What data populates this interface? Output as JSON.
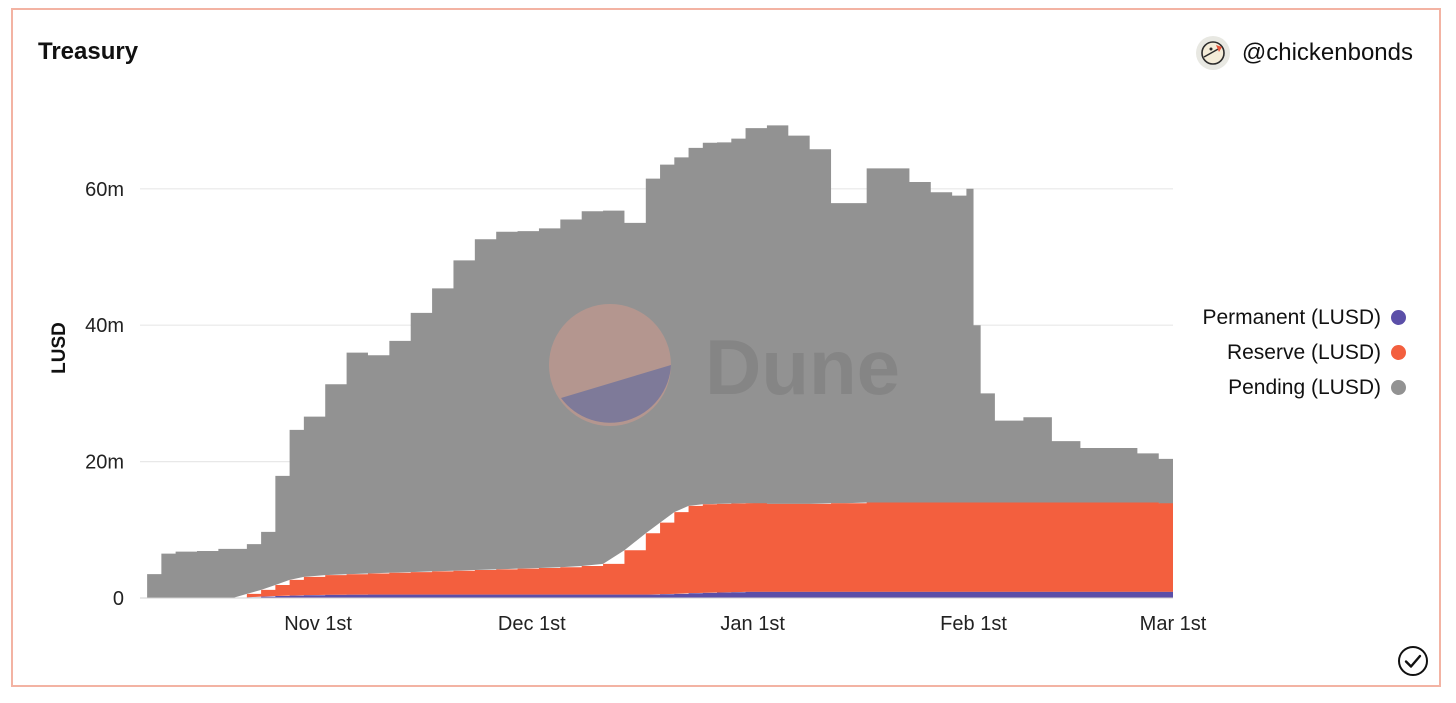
{
  "card": {
    "title": "Treasury",
    "author_handle": "@chickenbonds",
    "author_avatar_icon": "chicken-avatar-icon",
    "watermark": "Dune",
    "status_icon": "check-circle-icon"
  },
  "colors": {
    "permanent": "#5b4fa8",
    "reserve": "#f35f3e",
    "pending": "#929292",
    "grid": "#e8e8e8",
    "border": "#f3b3a3"
  },
  "chart_data": {
    "type": "area",
    "stacked": true,
    "title": "Treasury",
    "ylabel": "LUSD",
    "xlabel": "",
    "ylim": [
      0,
      75000000
    ],
    "y_ticks": [
      0,
      20000000,
      40000000,
      60000000
    ],
    "y_tick_labels": [
      "0",
      "20m",
      "40m",
      "60m"
    ],
    "x_ticks": [
      "2022-11-01",
      "2022-12-01",
      "2023-01-01",
      "2023-02-01",
      "2023-03-01"
    ],
    "x_tick_labels": [
      "Nov 1st",
      "Dec 1st",
      "Jan 1st",
      "Feb 1st",
      "Mar 1st"
    ],
    "x": [
      "2022-10-07",
      "2022-10-08",
      "2022-10-10",
      "2022-10-12",
      "2022-10-15",
      "2022-10-18",
      "2022-10-20",
      "2022-10-22",
      "2022-10-24",
      "2022-10-26",
      "2022-10-28",
      "2022-10-30",
      "2022-11-02",
      "2022-11-05",
      "2022-11-08",
      "2022-11-11",
      "2022-11-14",
      "2022-11-17",
      "2022-11-20",
      "2022-11-23",
      "2022-11-26",
      "2022-11-29",
      "2022-12-02",
      "2022-12-05",
      "2022-12-08",
      "2022-12-11",
      "2022-12-14",
      "2022-12-17",
      "2022-12-19",
      "2022-12-21",
      "2022-12-23",
      "2022-12-25",
      "2022-12-27",
      "2022-12-29",
      "2022-12-31",
      "2023-01-03",
      "2023-01-06",
      "2023-01-09",
      "2023-01-12",
      "2023-01-14",
      "2023-01-17",
      "2023-01-20",
      "2023-01-23",
      "2023-01-26",
      "2023-01-29",
      "2023-01-31",
      "2023-02-01",
      "2023-02-02",
      "2023-02-04",
      "2023-02-08",
      "2023-02-12",
      "2023-02-16",
      "2023-02-20",
      "2023-02-24",
      "2023-02-27",
      "2023-03-01"
    ],
    "series": [
      {
        "name": "Permanent (LUSD)",
        "color": "#5b4fa8",
        "values": [
          0,
          0,
          0,
          0,
          0,
          0,
          0,
          100000,
          200000,
          300000,
          350000,
          400000,
          450000,
          480000,
          500000,
          500000,
          500000,
          500000,
          500000,
          500000,
          500000,
          500000,
          500000,
          500000,
          500000,
          500000,
          500000,
          500000,
          550000,
          600000,
          700000,
          750000,
          800000,
          850000,
          900000,
          900000,
          900000,
          900000,
          900000,
          900000,
          900000,
          900000,
          900000,
          900000,
          900000,
          900000,
          900000,
          900000,
          900000,
          900000,
          900000,
          900000,
          900000,
          900000,
          900000,
          900000
        ]
      },
      {
        "name": "Reserve (LUSD)",
        "color": "#f35f3e",
        "values": [
          0,
          0,
          0,
          0,
          0,
          0,
          0,
          500000,
          1000000,
          1600000,
          2300000,
          2700000,
          2900000,
          3000000,
          3100000,
          3200000,
          3300000,
          3400000,
          3500000,
          3600000,
          3700000,
          3800000,
          3900000,
          4000000,
          4200000,
          4500000,
          6500000,
          9000000,
          10500000,
          12000000,
          12800000,
          13000000,
          13000000,
          13000000,
          13000000,
          12900000,
          12900000,
          12900000,
          13000000,
          13000000,
          13100000,
          13100000,
          13100000,
          13100000,
          13100000,
          13100000,
          13100000,
          13100000,
          13100000,
          13100000,
          13100000,
          13100000,
          13100000,
          13100000,
          13000000,
          12500000
        ]
      },
      {
        "name": "Pending (LUSD)",
        "color": "#929292",
        "values": [
          0,
          3500000,
          6500000,
          6800000,
          6900000,
          7200000,
          7200000,
          7300000,
          8500000,
          16000000,
          22000000,
          23500000,
          28000000,
          32500000,
          32000000,
          34000000,
          38000000,
          41500000,
          45500000,
          48500000,
          49500000,
          49500000,
          49800000,
          51000000,
          52000000,
          51800000,
          48000000,
          52000000,
          52500000,
          52000000,
          52500000,
          53000000,
          53000000,
          53500000,
          55000000,
          55500000,
          54000000,
          52000000,
          44000000,
          44000000,
          49000000,
          49000000,
          47000000,
          45500000,
          45000000,
          46000000,
          26000000,
          16000000,
          12000000,
          12500000,
          9000000,
          8000000,
          8000000,
          7200000,
          6500000,
          6000000
        ]
      }
    ],
    "legend": {
      "placement": "right",
      "order": [
        "Permanent (LUSD)",
        "Reserve (LUSD)",
        "Pending (LUSD)"
      ]
    },
    "grid": true
  }
}
